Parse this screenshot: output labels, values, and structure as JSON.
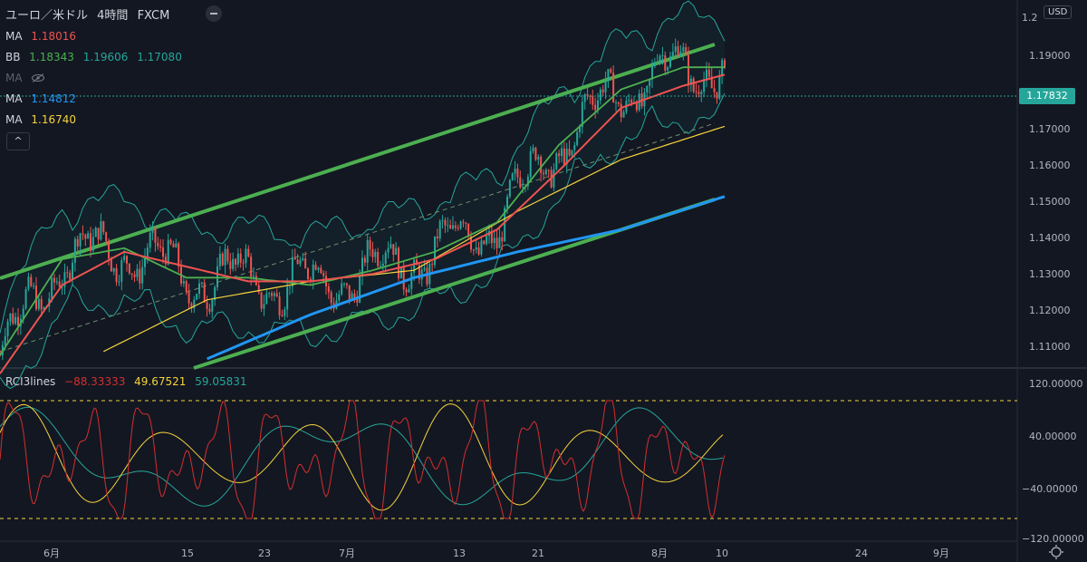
{
  "header": {
    "symbol": "ユーロ／米ドル",
    "timeframe": "4時間",
    "source": "FXCM",
    "currency_button": "USD",
    "collapse_glyph": "^"
  },
  "legend": {
    "ma1": {
      "label": "MA",
      "value": "1.18016",
      "color": "#ef5350"
    },
    "bb": {
      "label": "BB",
      "basis": "1.18343",
      "upper": "1.19606",
      "lower": "1.17080",
      "color_basis": "#4caf50",
      "color_band": "#26a69a"
    },
    "ma_hidden": {
      "label": "MA",
      "icon": "eye-slash-icon"
    },
    "ma2": {
      "label": "MA",
      "value": "1.14812",
      "color": "#2196f3"
    },
    "ma3": {
      "label": "MA",
      "value": "1.16740",
      "color": "#f5d33c"
    }
  },
  "price_axis": {
    "top_label": "1.2",
    "labels": [
      "1.19000",
      "1.17000",
      "1.16000",
      "1.15000",
      "1.14000",
      "1.13000",
      "1.12000",
      "1.11000"
    ],
    "current_price": "1.17832"
  },
  "time_axis": {
    "labels": [
      "6月",
      "15",
      "23",
      "7月",
      "13",
      "21",
      "8月",
      "10",
      "24",
      "9月"
    ]
  },
  "rci": {
    "label": "RCI3lines",
    "short": {
      "value": "−88.33333",
      "color": "#d32f2f"
    },
    "middle": {
      "value": "49.67521",
      "color": "#f5d33c"
    },
    "long": {
      "value": "59.05831",
      "color": "#26a69a"
    },
    "axis_labels": [
      "120.00000",
      "40.00000",
      "−40.00000",
      "−120.00000"
    ],
    "levels": [
      100,
      -100
    ]
  },
  "chart_data": {
    "type": "line",
    "title": "ユーロ／米ドル 4時間 FXCM",
    "x_ticks": [
      "6月",
      "15",
      "23",
      "7月",
      "13",
      "21",
      "8月",
      "10",
      "24",
      "9月"
    ],
    "ylim": [
      1.103,
      1.2
    ],
    "series": [
      {
        "name": "MA 1.18016",
        "color": "#ef5350",
        "x": [
          0,
          6,
          12,
          18,
          24,
          30,
          36,
          42,
          48,
          54,
          60,
          66,
          70
        ],
        "values": [
          1.1,
          1.124,
          1.133,
          1.129,
          1.125,
          1.125,
          1.127,
          1.131,
          1.139,
          1.155,
          1.172,
          1.178,
          1.181
        ]
      },
      {
        "name": "BB 1.18343",
        "color": "#4caf50",
        "x": [
          0,
          6,
          12,
          18,
          24,
          30,
          36,
          42,
          48,
          54,
          60,
          66,
          70
        ],
        "values": [
          1.105,
          1.131,
          1.134,
          1.126,
          1.126,
          1.124,
          1.128,
          1.133,
          1.141,
          1.162,
          1.177,
          1.183,
          1.183
        ]
      },
      {
        "name": "MA 1.14812",
        "color": "#2196f3",
        "x": [
          20,
          30,
          40,
          50,
          60,
          70
        ],
        "values": [
          1.104,
          1.116,
          1.126,
          1.133,
          1.139,
          1.148
        ]
      },
      {
        "name": "MA 1.16740",
        "color": "#f5d33c",
        "x": [
          10,
          20,
          30,
          40,
          50,
          60,
          70
        ],
        "values": [
          1.106,
          1.12,
          1.125,
          1.128,
          1.144,
          1.158,
          1.167
        ]
      }
    ]
  }
}
